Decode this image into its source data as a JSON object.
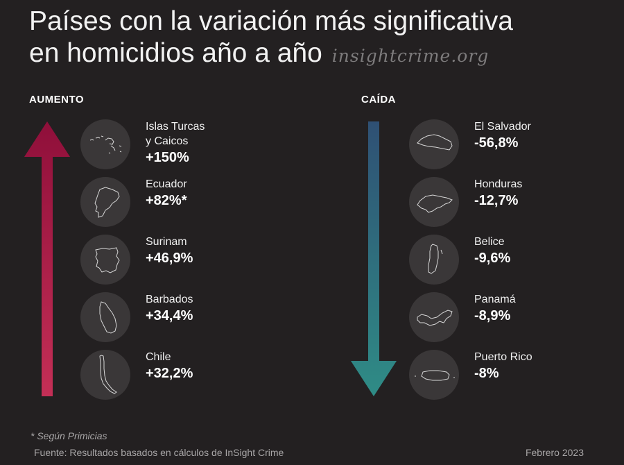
{
  "title": {
    "line1": "Países con la variación más significativa",
    "line2": "en homicidios año a año",
    "brand": "insightcrime.org"
  },
  "increase": {
    "label": "AUMENTO",
    "color_top": "#8f0f3a",
    "color_bottom": "#c42f56",
    "items": [
      {
        "name": "Islas Turcas\ny Caicos",
        "value": "+150%",
        "icon": "turks-caicos-map-icon"
      },
      {
        "name": "Ecuador",
        "value": "+82%*",
        "icon": "ecuador-map-icon"
      },
      {
        "name": "Surinam",
        "value": "+46,9%",
        "icon": "suriname-map-icon"
      },
      {
        "name": "Barbados",
        "value": "+34,4%",
        "icon": "barbados-map-icon"
      },
      {
        "name": "Chile",
        "value": "+32,2%",
        "icon": "chile-map-icon"
      }
    ]
  },
  "decrease": {
    "label": "CAÍDA",
    "color_top": "#2f5074",
    "color_bottom": "#2f8c86",
    "items": [
      {
        "name": "El Salvador",
        "value": "-56,8%",
        "icon": "el-salvador-map-icon"
      },
      {
        "name": "Honduras",
        "value": "-12,7%",
        "icon": "honduras-map-icon"
      },
      {
        "name": "Belice",
        "value": "-9,6%",
        "icon": "belize-map-icon"
      },
      {
        "name": "Panamá",
        "value": "-8,9%",
        "icon": "panama-map-icon"
      },
      {
        "name": "Puerto Rico",
        "value": "-8%",
        "icon": "puerto-rico-map-icon"
      }
    ]
  },
  "footer": {
    "note": "* Según Primicias",
    "source": "Fuente: Resultados basados en cálculos de InSight Crime",
    "date": "Febrero 2023"
  }
}
